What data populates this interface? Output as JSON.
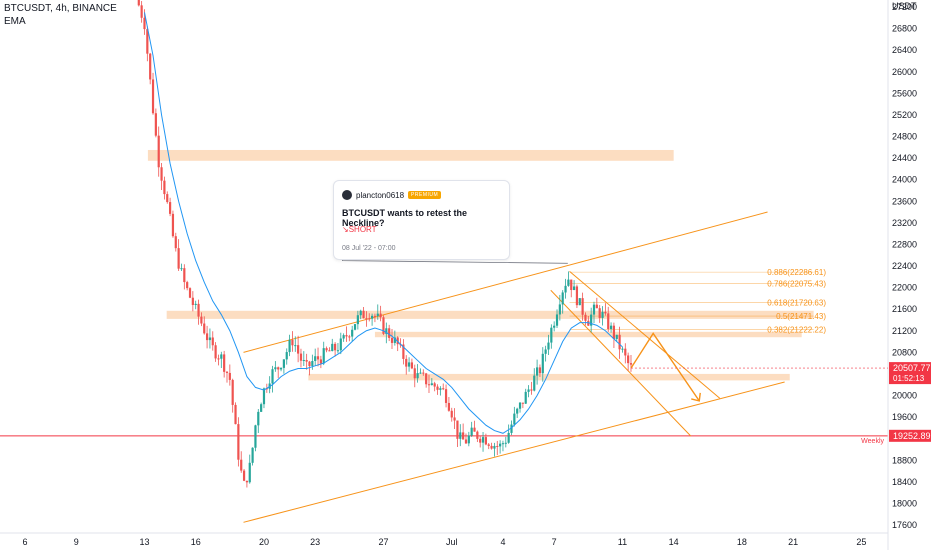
{
  "header": {
    "symbol_line": "BTCUSDT, 4h, BINANCE",
    "indicator": "EMA"
  },
  "idea": {
    "author": "plancton0618",
    "badge": "PREMIUM",
    "title": "BTCUSDT wants to retest the Neckline?",
    "direction": "SHORT",
    "date": "08 Jul '22 - 07:00"
  },
  "colors": {
    "up": "#26a69a",
    "down": "#ef5350",
    "ema": "#2196f3",
    "channel": "#f7931a",
    "zone": "#fbd7b6",
    "weekly": "#f23645",
    "price_badge": "#f23645",
    "text": "#131722"
  },
  "chart_data": {
    "type": "candlestick",
    "currency": "USDT",
    "ylim": [
      17400,
      27300
    ],
    "y_ticks": [
      27200,
      26800,
      26400,
      26000,
      25600,
      25200,
      24800,
      24400,
      24000,
      23600,
      23200,
      22800,
      22400,
      22000,
      21600,
      21200,
      20800,
      20400,
      20000,
      19600,
      19200,
      18800,
      18400,
      18000,
      17600
    ],
    "x_ticks": [
      {
        "label": "6",
        "day": 6
      },
      {
        "label": "9",
        "day": 9
      },
      {
        "label": "13",
        "day": 13
      },
      {
        "label": "16",
        "day": 16
      },
      {
        "label": "20",
        "day": 20
      },
      {
        "label": "23",
        "day": 23
      },
      {
        "label": "27",
        "day": 27
      },
      {
        "label": "Jul",
        "day": 31
      },
      {
        "label": "4",
        "day": 34
      },
      {
        "label": "7",
        "day": 37
      },
      {
        "label": "11",
        "day": 41
      },
      {
        "label": "14",
        "day": 44
      },
      {
        "label": "18",
        "day": 48
      },
      {
        "label": "21",
        "day": 51
      },
      {
        "label": "25",
        "day": 55
      }
    ],
    "price_path": [
      [
        12.5,
        27400
      ],
      [
        13.0,
        26900
      ],
      [
        13.4,
        25600
      ],
      [
        13.8,
        24400
      ],
      [
        14.3,
        23600
      ],
      [
        14.8,
        22700
      ],
      [
        15.3,
        22100
      ],
      [
        15.9,
        21650
      ],
      [
        16.4,
        21300
      ],
      [
        16.9,
        20900
      ],
      [
        17.5,
        20700
      ],
      [
        18.0,
        20300
      ],
      [
        18.5,
        18900
      ],
      [
        18.8,
        18300
      ],
      [
        19.2,
        18700
      ],
      [
        19.6,
        19700
      ],
      [
        20.0,
        20100
      ],
      [
        20.4,
        20400
      ],
      [
        20.8,
        20500
      ],
      [
        21.3,
        20800
      ],
      [
        21.7,
        21050
      ],
      [
        22.1,
        20700
      ],
      [
        22.5,
        20500
      ],
      [
        22.9,
        20650
      ],
      [
        23.3,
        20700
      ],
      [
        23.7,
        20800
      ],
      [
        24.1,
        20850
      ],
      [
        24.5,
        20950
      ],
      [
        25.0,
        21200
      ],
      [
        25.4,
        21400
      ],
      [
        25.8,
        21500
      ],
      [
        26.2,
        21550
      ],
      [
        26.6,
        21450
      ],
      [
        27.0,
        21250
      ],
      [
        27.4,
        21100
      ],
      [
        27.8,
        20950
      ],
      [
        28.2,
        20700
      ],
      [
        28.6,
        20500
      ],
      [
        29.0,
        20350
      ],
      [
        29.4,
        20300
      ],
      [
        29.8,
        20200
      ],
      [
        30.2,
        20150
      ],
      [
        30.6,
        20050
      ],
      [
        31.0,
        19700
      ],
      [
        31.4,
        19200
      ],
      [
        31.8,
        19150
      ],
      [
        32.2,
        19300
      ],
      [
        32.6,
        19250
      ],
      [
        33.0,
        19200
      ],
      [
        33.4,
        19100
      ],
      [
        33.8,
        19050
      ],
      [
        34.2,
        19200
      ],
      [
        34.6,
        19550
      ],
      [
        35.0,
        19800
      ],
      [
        35.4,
        20050
      ],
      [
        35.8,
        20300
      ],
      [
        36.2,
        20500
      ],
      [
        36.6,
        21000
      ],
      [
        37.0,
        21400
      ],
      [
        37.4,
        21900
      ],
      [
        37.8,
        22200
      ],
      [
        38.2,
        21900
      ],
      [
        38.6,
        21600
      ],
      [
        39.0,
        21400
      ],
      [
        39.4,
        21600
      ],
      [
        39.8,
        21500
      ],
      [
        40.2,
        21300
      ],
      [
        40.6,
        21050
      ],
      [
        41.0,
        20800
      ],
      [
        41.3,
        20600
      ],
      [
        41.5,
        20507
      ]
    ],
    "ema_path": [
      [
        13.0,
        27100
      ],
      [
        13.5,
        26300
      ],
      [
        14.0,
        25200
      ],
      [
        14.5,
        24300
      ],
      [
        15.0,
        23600
      ],
      [
        15.5,
        23000
      ],
      [
        16.0,
        22500
      ],
      [
        16.5,
        22100
      ],
      [
        17.0,
        21750
      ],
      [
        17.5,
        21500
      ],
      [
        18.0,
        21200
      ],
      [
        18.5,
        20800
      ],
      [
        19.0,
        20350
      ],
      [
        19.5,
        20150
      ],
      [
        20.0,
        20100
      ],
      [
        20.5,
        20200
      ],
      [
        21.0,
        20350
      ],
      [
        21.5,
        20450
      ],
      [
        22.0,
        20500
      ],
      [
        22.5,
        20500
      ],
      [
        23.0,
        20550
      ],
      [
        23.5,
        20600
      ],
      [
        24.0,
        20700
      ],
      [
        24.5,
        20800
      ],
      [
        25.0,
        20950
      ],
      [
        25.5,
        21100
      ],
      [
        26.0,
        21200
      ],
      [
        26.5,
        21250
      ],
      [
        27.0,
        21200
      ],
      [
        27.5,
        21100
      ],
      [
        28.0,
        20950
      ],
      [
        28.5,
        20800
      ],
      [
        29.0,
        20650
      ],
      [
        29.5,
        20500
      ],
      [
        30.0,
        20400
      ],
      [
        30.5,
        20300
      ],
      [
        31.0,
        20150
      ],
      [
        31.5,
        19950
      ],
      [
        32.0,
        19750
      ],
      [
        32.5,
        19600
      ],
      [
        33.0,
        19450
      ],
      [
        33.5,
        19350
      ],
      [
        34.0,
        19300
      ],
      [
        34.5,
        19400
      ],
      [
        35.0,
        19550
      ],
      [
        35.5,
        19750
      ],
      [
        36.0,
        20000
      ],
      [
        36.5,
        20300
      ],
      [
        37.0,
        20650
      ],
      [
        37.5,
        21000
      ],
      [
        38.0,
        21250
      ],
      [
        38.5,
        21350
      ],
      [
        39.0,
        21350
      ],
      [
        39.5,
        21300
      ],
      [
        40.0,
        21200
      ],
      [
        40.5,
        21050
      ],
      [
        41.0,
        20900
      ]
    ],
    "zones": [
      {
        "d1": 13.2,
        "d2": 44.0,
        "p1": 24350,
        "p2": 24550
      },
      {
        "d1": 14.3,
        "d2": 52.2,
        "p1": 21420,
        "p2": 21570
      },
      {
        "d1": 26.5,
        "d2": 51.5,
        "p1": 21080,
        "p2": 21180
      },
      {
        "d1": 22.6,
        "d2": 50.8,
        "p1": 20280,
        "p2": 20400
      }
    ],
    "lines": [
      {
        "name": "upper-channel",
        "d1": 18.8,
        "p1": 20800,
        "d2": 49.5,
        "p2": 23400
      },
      {
        "name": "lower-channel",
        "d1": 18.8,
        "p1": 17650,
        "d2": 50.5,
        "p2": 20250
      },
      {
        "name": "flag-upper",
        "d1": 37.9,
        "p1": 22300,
        "d2": 46.7,
        "p2": 19950
      },
      {
        "name": "flag-lower",
        "d1": 36.8,
        "p1": 21950,
        "d2": 45.0,
        "p2": 19250
      }
    ],
    "projection": [
      [
        41.5,
        20507
      ],
      [
        42.8,
        21150
      ],
      [
        45.5,
        19900
      ]
    ],
    "idea_pointer": [
      [
        24.6,
        22500
      ],
      [
        37.8,
        22450
      ]
    ],
    "fib_levels": [
      {
        "ratio": "0.886",
        "price": 22286.61,
        "label": "0.886(22286.61)"
      },
      {
        "ratio": "0.786",
        "price": 22075.43,
        "label": "0.786(22075.43)"
      },
      {
        "ratio": "0.618",
        "price": 21720.63,
        "label": "0.618(21720.63)"
      },
      {
        "ratio": "0.5",
        "price": 21471.43,
        "label": "0.5(21471.43)"
      },
      {
        "ratio": "0.382",
        "price": 21222.22,
        "label": "0.382(21222.22)"
      }
    ],
    "weekly": {
      "price": 19252.89,
      "label": "Weekly",
      "value_label": "19252.89"
    },
    "last_price": {
      "price": 20507.77,
      "value_label": "20507.77",
      "countdown": "01:52:13"
    }
  }
}
